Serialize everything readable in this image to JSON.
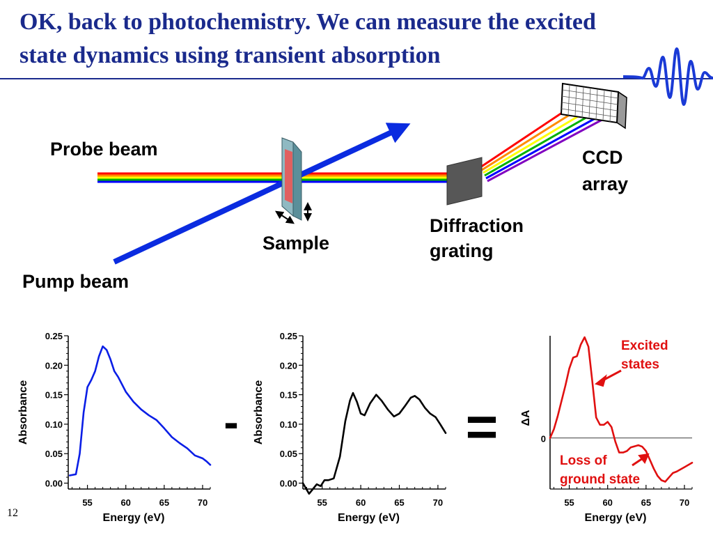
{
  "title": "OK, back to photochemistry.  We can measure the excited state dynamics using transient absorption",
  "page_number": "12",
  "diagram": {
    "probe_label": "Probe beam",
    "pump_label": "Pump beam",
    "sample_label": "Sample",
    "grating_label_1": "Diffraction",
    "grating_label_2": "grating",
    "ccd_label_1": "CCD",
    "ccd_label_2": "array",
    "minus_sign": "-",
    "equals_sign": "=",
    "colors": {
      "title": "#1a2a8c",
      "pump": "#0a2be0",
      "rainbow": [
        "#ff0000",
        "#ff8c00",
        "#ffff00",
        "#00b000",
        "#0000ff",
        "#8000c0"
      ],
      "sample": "#e06060",
      "grating": "#555555",
      "annotation": "#e01010"
    }
  },
  "chart_data": [
    {
      "type": "line",
      "xlabel": "Energy (eV)",
      "ylabel": "Absorbance",
      "xlim": [
        52.5,
        71
      ],
      "ylim": [
        -0.01,
        0.25
      ],
      "xticks": [
        "55",
        "60",
        "65",
        "70"
      ],
      "yticks": [
        "0.00",
        "0.05",
        "0.10",
        "0.15",
        "0.20",
        "0.25"
      ],
      "color": "#0a1ee6",
      "series": [
        {
          "x": [
            52.7,
            53.5,
            54.0,
            54.5,
            55.0,
            55.5,
            56.0,
            56.5,
            57.0,
            57.5,
            58.0,
            58.5,
            59.0,
            60.0,
            61.0,
            62.0,
            63.0,
            64.0,
            65.0,
            66.0,
            67.0,
            68.0,
            69.0,
            70.0,
            70.5,
            71.0
          ],
          "values": [
            0.013,
            0.015,
            0.05,
            0.12,
            0.163,
            0.175,
            0.19,
            0.215,
            0.232,
            0.226,
            0.21,
            0.19,
            0.18,
            0.155,
            0.138,
            0.125,
            0.115,
            0.107,
            0.093,
            0.078,
            0.068,
            0.059,
            0.047,
            0.042,
            0.037,
            0.031
          ]
        }
      ]
    },
    {
      "type": "line",
      "xlabel": "Energy (eV)",
      "ylabel": "Absorbance",
      "xlim": [
        52.5,
        71
      ],
      "ylim": [
        -0.01,
        0.25
      ],
      "xticks": [
        "55",
        "60",
        "65",
        "70"
      ],
      "yticks": [
        "0.00",
        "0.05",
        "0.10",
        "0.15",
        "0.20",
        "0.25"
      ],
      "color": "#000000",
      "series": [
        {
          "x": [
            52.5,
            53.3,
            53.8,
            54.3,
            54.8,
            55.3,
            55.8,
            56.5,
            57.3,
            58.0,
            58.6,
            59.0,
            59.5,
            60.0,
            60.5,
            61.2,
            62.0,
            62.7,
            63.5,
            64.3,
            65.0,
            65.8,
            66.5,
            67.0,
            67.6,
            68.3,
            69.0,
            69.7,
            70.3,
            71.0
          ],
          "values": [
            0.0,
            -0.018,
            -0.01,
            -0.002,
            -0.005,
            0.005,
            0.005,
            0.008,
            0.045,
            0.105,
            0.14,
            0.153,
            0.138,
            0.118,
            0.115,
            0.135,
            0.15,
            0.14,
            0.125,
            0.113,
            0.118,
            0.132,
            0.145,
            0.148,
            0.142,
            0.128,
            0.118,
            0.112,
            0.1,
            0.085
          ]
        }
      ]
    },
    {
      "type": "line",
      "xlabel": "Energy (eV)",
      "ylabel": "ΔA",
      "zero_label": "0",
      "xlim": [
        52.5,
        71
      ],
      "ylim": [
        -0.07,
        0.14
      ],
      "xticks": [
        "55",
        "60",
        "65",
        "70"
      ],
      "color": "#e01010",
      "annotations": [
        "Excited",
        "states",
        "Loss of",
        "ground state"
      ],
      "series": [
        {
          "x": [
            52.5,
            53.0,
            53.5,
            54.5,
            55.0,
            55.5,
            56.0,
            56.5,
            57.0,
            57.5,
            58.0,
            58.5,
            59.0,
            59.5,
            60.0,
            60.5,
            61.0,
            61.5,
            62.0,
            62.5,
            63.0,
            64.0,
            64.5,
            65.0,
            65.5,
            66.0,
            66.5,
            67.0,
            67.5,
            68.0,
            68.5,
            69.0,
            70.0,
            71.0
          ],
          "values": [
            0.0,
            0.012,
            0.03,
            0.072,
            0.095,
            0.11,
            0.112,
            0.128,
            0.138,
            0.125,
            0.078,
            0.028,
            0.018,
            0.018,
            0.022,
            0.015,
            -0.005,
            -0.02,
            -0.02,
            -0.018,
            -0.013,
            -0.01,
            -0.012,
            -0.018,
            -0.03,
            -0.042,
            -0.052,
            -0.058,
            -0.06,
            -0.054,
            -0.048,
            -0.046,
            -0.04,
            -0.034
          ]
        }
      ]
    }
  ]
}
